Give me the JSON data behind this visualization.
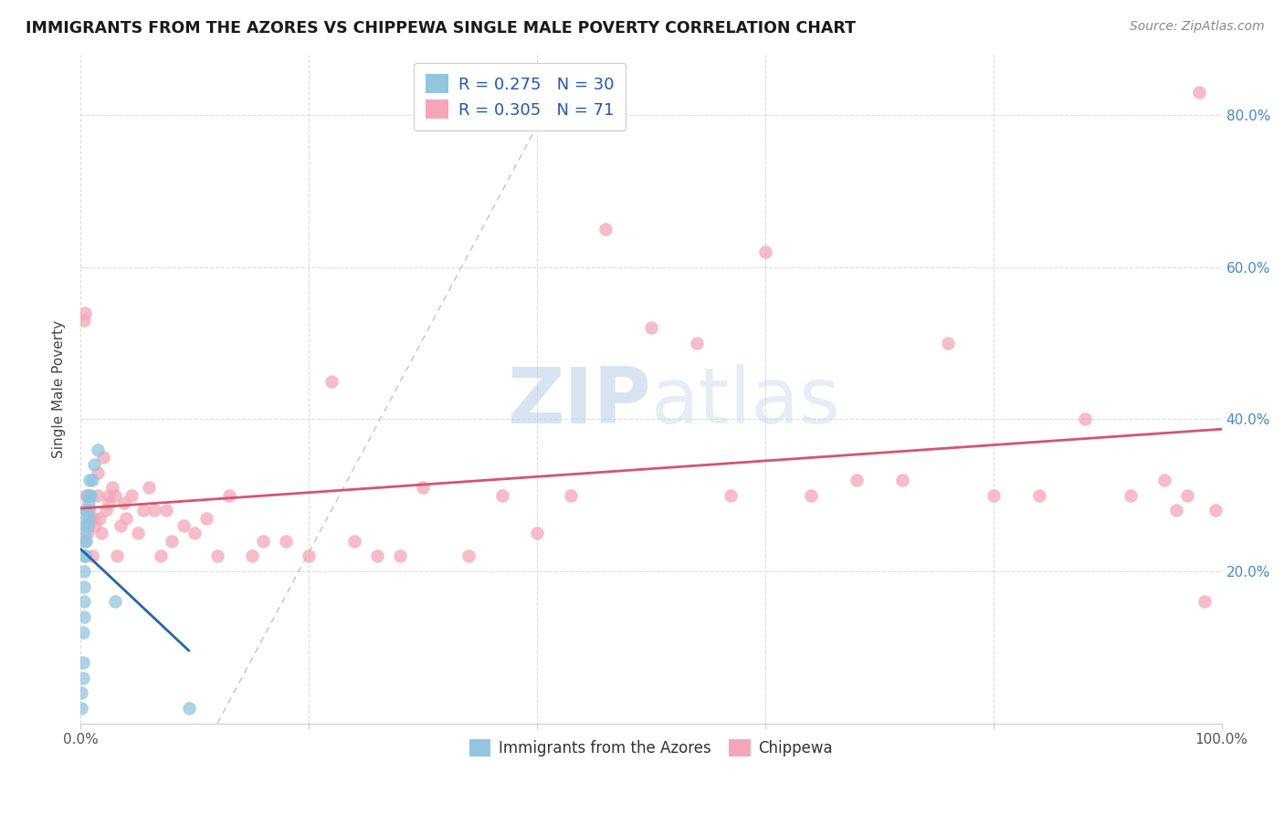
{
  "title": "IMMIGRANTS FROM THE AZORES VS CHIPPEWA SINGLE MALE POVERTY CORRELATION CHART",
  "source": "Source: ZipAtlas.com",
  "ylabel": "Single Male Poverty",
  "legend_label1": "Immigrants from the Azores",
  "legend_label2": "Chippewa",
  "legend_r1": "0.275",
  "legend_n1": "30",
  "legend_r2": "0.305",
  "legend_n2": "71",
  "xlim": [
    0.0,
    1.0
  ],
  "ylim": [
    0.0,
    0.88
  ],
  "xticks": [
    0.0,
    0.2,
    0.4,
    0.6,
    0.8,
    1.0
  ],
  "yticks": [
    0.0,
    0.2,
    0.4,
    0.6,
    0.8
  ],
  "xticklabels": [
    "0.0%",
    "",
    "",
    "",
    "",
    "100.0%"
  ],
  "yticklabels": [
    "",
    "20.0%",
    "40.0%",
    "60.0%",
    "80.0%"
  ],
  "color_blue": "#92c5de",
  "color_pink": "#f4a6b8",
  "color_trendline_blue": "#2166ac",
  "color_trendline_pink": "#d6546e",
  "color_refline": "#aaaaaa",
  "background_color": "#ffffff",
  "grid_color": "#dddddd",
  "blue_x": [
    0.001,
    0.001,
    0.002,
    0.002,
    0.002,
    0.003,
    0.003,
    0.003,
    0.003,
    0.004,
    0.004,
    0.004,
    0.004,
    0.005,
    0.005,
    0.005,
    0.005,
    0.006,
    0.006,
    0.006,
    0.007,
    0.007,
    0.008,
    0.008,
    0.009,
    0.01,
    0.012,
    0.015,
    0.03,
    0.095
  ],
  "blue_y": [
    0.02,
    0.04,
    0.06,
    0.08,
    0.12,
    0.14,
    0.16,
    0.18,
    0.2,
    0.22,
    0.22,
    0.24,
    0.25,
    0.24,
    0.26,
    0.27,
    0.28,
    0.26,
    0.28,
    0.3,
    0.27,
    0.29,
    0.3,
    0.32,
    0.3,
    0.32,
    0.34,
    0.36,
    0.16,
    0.02
  ],
  "pink_x": [
    0.003,
    0.004,
    0.005,
    0.005,
    0.006,
    0.007,
    0.008,
    0.008,
    0.009,
    0.01,
    0.012,
    0.013,
    0.015,
    0.015,
    0.017,
    0.018,
    0.02,
    0.022,
    0.025,
    0.025,
    0.028,
    0.03,
    0.032,
    0.035,
    0.038,
    0.04,
    0.045,
    0.05,
    0.055,
    0.06,
    0.065,
    0.07,
    0.075,
    0.08,
    0.09,
    0.1,
    0.11,
    0.12,
    0.13,
    0.15,
    0.16,
    0.18,
    0.2,
    0.22,
    0.24,
    0.26,
    0.28,
    0.3,
    0.34,
    0.37,
    0.4,
    0.43,
    0.46,
    0.5,
    0.54,
    0.57,
    0.6,
    0.64,
    0.68,
    0.72,
    0.76,
    0.8,
    0.84,
    0.88,
    0.92,
    0.95,
    0.96,
    0.97,
    0.98,
    0.985,
    0.995
  ],
  "pink_y": [
    0.53,
    0.54,
    0.28,
    0.3,
    0.25,
    0.26,
    0.27,
    0.28,
    0.27,
    0.22,
    0.27,
    0.26,
    0.3,
    0.33,
    0.27,
    0.25,
    0.35,
    0.28,
    0.29,
    0.3,
    0.31,
    0.3,
    0.22,
    0.26,
    0.29,
    0.27,
    0.3,
    0.25,
    0.28,
    0.31,
    0.28,
    0.22,
    0.28,
    0.24,
    0.26,
    0.25,
    0.27,
    0.22,
    0.3,
    0.22,
    0.24,
    0.24,
    0.22,
    0.45,
    0.24,
    0.22,
    0.22,
    0.31,
    0.22,
    0.3,
    0.25,
    0.3,
    0.65,
    0.52,
    0.5,
    0.3,
    0.62,
    0.3,
    0.32,
    0.32,
    0.5,
    0.3,
    0.3,
    0.4,
    0.3,
    0.32,
    0.28,
    0.3,
    0.83,
    0.16,
    0.28
  ]
}
